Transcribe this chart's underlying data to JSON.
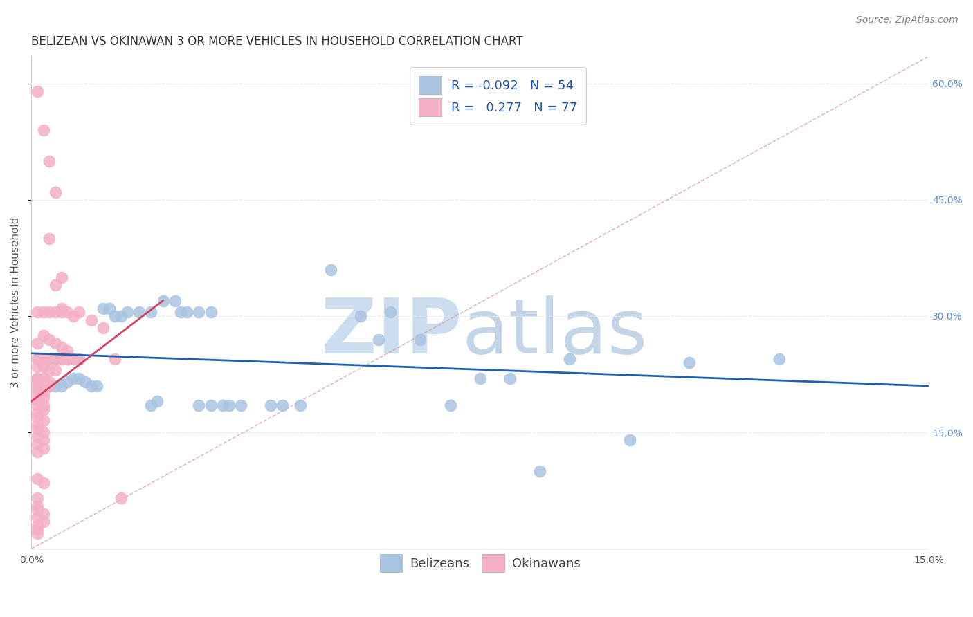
{
  "title": "BELIZEAN VS OKINAWAN 3 OR MORE VEHICLES IN HOUSEHOLD CORRELATION CHART",
  "source": "Source: ZipAtlas.com",
  "ylabel": "3 or more Vehicles in Household",
  "legend_blue_R": "-0.092",
  "legend_blue_N": "54",
  "legend_pink_R": "0.277",
  "legend_pink_N": "77",
  "xlim": [
    0.0,
    0.15
  ],
  "ylim": [
    0.0,
    0.635
  ],
  "yticks": [
    0.15,
    0.3,
    0.45,
    0.6
  ],
  "ytick_labels_right": [
    "15.0%",
    "30.0%",
    "45.0%",
    "60.0%"
  ],
  "xtick_labels": [
    "0.0%",
    "",
    "",
    "",
    "",
    "",
    "15.0%"
  ],
  "blue_scatter": [
    [
      0.001,
      0.245
    ],
    [
      0.002,
      0.245
    ],
    [
      0.003,
      0.245
    ],
    [
      0.004,
      0.245
    ],
    [
      0.005,
      0.245
    ],
    [
      0.006,
      0.245
    ],
    [
      0.007,
      0.245
    ],
    [
      0.008,
      0.245
    ],
    [
      0.001,
      0.22
    ],
    [
      0.002,
      0.215
    ],
    [
      0.003,
      0.21
    ],
    [
      0.004,
      0.21
    ],
    [
      0.005,
      0.21
    ],
    [
      0.006,
      0.215
    ],
    [
      0.007,
      0.22
    ],
    [
      0.008,
      0.22
    ],
    [
      0.009,
      0.215
    ],
    [
      0.01,
      0.21
    ],
    [
      0.011,
      0.21
    ],
    [
      0.012,
      0.31
    ],
    [
      0.013,
      0.31
    ],
    [
      0.014,
      0.3
    ],
    [
      0.015,
      0.3
    ],
    [
      0.016,
      0.305
    ],
    [
      0.018,
      0.305
    ],
    [
      0.02,
      0.305
    ],
    [
      0.022,
      0.32
    ],
    [
      0.024,
      0.32
    ],
    [
      0.025,
      0.305
    ],
    [
      0.026,
      0.305
    ],
    [
      0.028,
      0.305
    ],
    [
      0.03,
      0.305
    ],
    [
      0.02,
      0.185
    ],
    [
      0.021,
      0.19
    ],
    [
      0.028,
      0.185
    ],
    [
      0.03,
      0.185
    ],
    [
      0.032,
      0.185
    ],
    [
      0.033,
      0.185
    ],
    [
      0.035,
      0.185
    ],
    [
      0.04,
      0.185
    ],
    [
      0.042,
      0.185
    ],
    [
      0.045,
      0.185
    ],
    [
      0.05,
      0.36
    ],
    [
      0.055,
      0.3
    ],
    [
      0.058,
      0.27
    ],
    [
      0.06,
      0.305
    ],
    [
      0.065,
      0.27
    ],
    [
      0.07,
      0.185
    ],
    [
      0.075,
      0.22
    ],
    [
      0.08,
      0.22
    ],
    [
      0.085,
      0.1
    ],
    [
      0.09,
      0.245
    ],
    [
      0.1,
      0.14
    ],
    [
      0.11,
      0.24
    ],
    [
      0.125,
      0.245
    ]
  ],
  "pink_scatter": [
    [
      0.001,
      0.59
    ],
    [
      0.002,
      0.54
    ],
    [
      0.003,
      0.5
    ],
    [
      0.004,
      0.46
    ],
    [
      0.003,
      0.4
    ],
    [
      0.005,
      0.35
    ],
    [
      0.004,
      0.34
    ],
    [
      0.005,
      0.31
    ],
    [
      0.005,
      0.305
    ],
    [
      0.006,
      0.305
    ],
    [
      0.007,
      0.3
    ],
    [
      0.003,
      0.305
    ],
    [
      0.004,
      0.305
    ],
    [
      0.001,
      0.305
    ],
    [
      0.002,
      0.305
    ],
    [
      0.008,
      0.305
    ],
    [
      0.002,
      0.275
    ],
    [
      0.003,
      0.27
    ],
    [
      0.001,
      0.265
    ],
    [
      0.004,
      0.265
    ],
    [
      0.005,
      0.26
    ],
    [
      0.006,
      0.255
    ],
    [
      0.002,
      0.245
    ],
    [
      0.003,
      0.245
    ],
    [
      0.001,
      0.245
    ],
    [
      0.004,
      0.245
    ],
    [
      0.005,
      0.245
    ],
    [
      0.001,
      0.235
    ],
    [
      0.002,
      0.235
    ],
    [
      0.003,
      0.23
    ],
    [
      0.004,
      0.23
    ],
    [
      0.001,
      0.22
    ],
    [
      0.002,
      0.22
    ],
    [
      0.003,
      0.215
    ],
    [
      0.001,
      0.215
    ],
    [
      0.002,
      0.21
    ],
    [
      0.001,
      0.21
    ],
    [
      0.003,
      0.21
    ],
    [
      0.001,
      0.205
    ],
    [
      0.002,
      0.2
    ],
    [
      0.001,
      0.2
    ],
    [
      0.002,
      0.195
    ],
    [
      0.001,
      0.195
    ],
    [
      0.001,
      0.19
    ],
    [
      0.002,
      0.185
    ],
    [
      0.001,
      0.185
    ],
    [
      0.002,
      0.18
    ],
    [
      0.001,
      0.175
    ],
    [
      0.001,
      0.17
    ],
    [
      0.002,
      0.165
    ],
    [
      0.001,
      0.16
    ],
    [
      0.001,
      0.155
    ],
    [
      0.002,
      0.15
    ],
    [
      0.001,
      0.145
    ],
    [
      0.002,
      0.14
    ],
    [
      0.001,
      0.135
    ],
    [
      0.002,
      0.13
    ],
    [
      0.001,
      0.125
    ],
    [
      0.001,
      0.09
    ],
    [
      0.002,
      0.085
    ],
    [
      0.001,
      0.065
    ],
    [
      0.001,
      0.055
    ],
    [
      0.001,
      0.05
    ],
    [
      0.002,
      0.045
    ],
    [
      0.001,
      0.04
    ],
    [
      0.002,
      0.035
    ],
    [
      0.001,
      0.03
    ],
    [
      0.001,
      0.025
    ],
    [
      0.001,
      0.02
    ],
    [
      0.015,
      0.065
    ],
    [
      0.01,
      0.295
    ],
    [
      0.012,
      0.285
    ],
    [
      0.008,
      0.245
    ],
    [
      0.006,
      0.245
    ],
    [
      0.007,
      0.245
    ],
    [
      0.014,
      0.245
    ]
  ],
  "blue_line_x": [
    0.0,
    0.15
  ],
  "blue_line_y": [
    0.252,
    0.21
  ],
  "pink_line_x": [
    0.0,
    0.022
  ],
  "pink_line_y": [
    0.19,
    0.32
  ],
  "diag_line_x": [
    0.0,
    0.15
  ],
  "diag_line_y": [
    0.0,
    0.635
  ],
  "blue_color": "#a8c4e0",
  "pink_color": "#f4b0c4",
  "blue_line_color": "#2060b0",
  "pink_line_color": "#d04060",
  "diag_line_color": "#e0a0b0",
  "grid_color": "#e8e8e8",
  "watermark_color_zip": "#ccddf0",
  "watermark_color_atlas": "#c5d5e8",
  "title_fontsize": 12,
  "source_fontsize": 10,
  "label_fontsize": 11,
  "tick_fontsize": 10,
  "legend_fontsize": 13
}
